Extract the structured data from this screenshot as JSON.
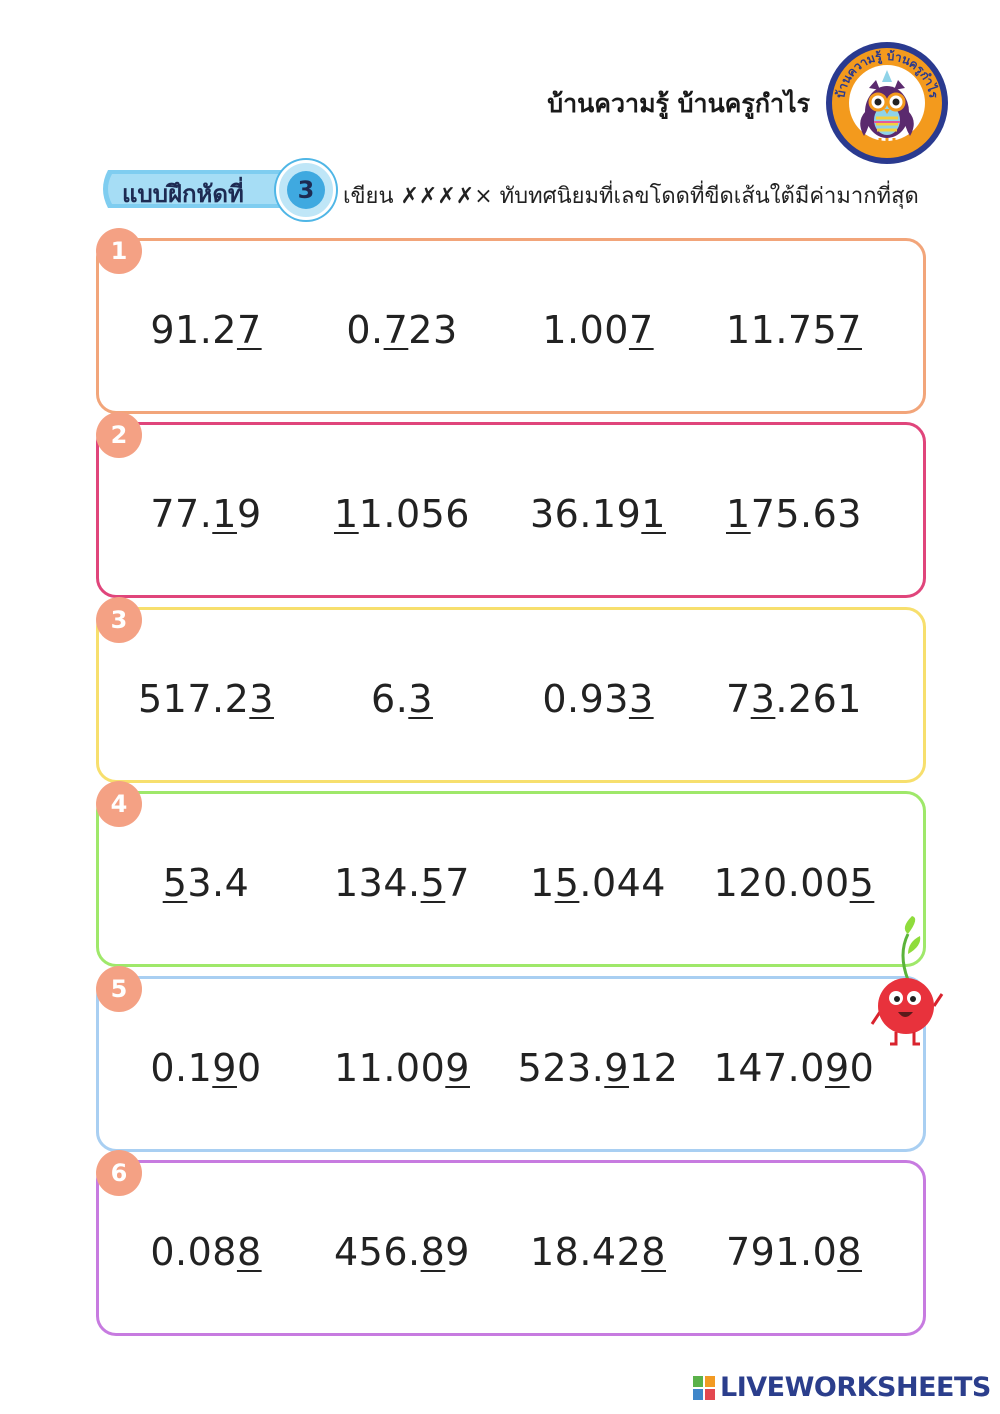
{
  "header": {
    "brand_title": "บ้านความรู้ บ้านครูกำไร",
    "logo_text": "บ้านความรู้ บ้านครูกำไร",
    "exercise_label": "แบบฝึกหัดที่",
    "exercise_number": "3",
    "instruction_prefix": "เขียน",
    "instruction_mark": "✗✗✗✗",
    "instruction_mark_end": "×",
    "instruction_suffix": "ทับทศนิยมที่เลขโดดที่ขีดเส้นใต้มีค่ามากที่สุด"
  },
  "colors": {
    "circle": "#f4a184",
    "borders": [
      "#f2a57a",
      "#e0457b",
      "#f7df6d",
      "#9fe86a",
      "#a9cff2",
      "#c77be0"
    ]
  },
  "problems": [
    {
      "number": "1",
      "items": [
        {
          "pre": "91.2",
          "u": "7",
          "post": ""
        },
        {
          "pre": "0.",
          "u": "7",
          "post": "23"
        },
        {
          "pre": "1.00",
          "u": "7",
          "post": ""
        },
        {
          "pre": "11.75",
          "u": "7",
          "post": ""
        }
      ]
    },
    {
      "number": "2",
      "items": [
        {
          "pre": "77.",
          "u": "1",
          "post": "9"
        },
        {
          "pre": "",
          "u": "1",
          "post": "1.056"
        },
        {
          "pre": "36.19",
          "u": "1",
          "post": ""
        },
        {
          "pre": "",
          "u": "1",
          "post": "75.63"
        }
      ]
    },
    {
      "number": "3",
      "items": [
        {
          "pre": "517.2",
          "u": "3",
          "post": ""
        },
        {
          "pre": "6.",
          "u": "3",
          "post": ""
        },
        {
          "pre": "0.93",
          "u": "3",
          "post": ""
        },
        {
          "pre": "7",
          "u": "3",
          "post": ".261"
        }
      ]
    },
    {
      "number": "4",
      "items": [
        {
          "pre": "",
          "u": "5",
          "post": "3.4"
        },
        {
          "pre": "134.",
          "u": "5",
          "post": "7"
        },
        {
          "pre": "1",
          "u": "5",
          "post": ".044"
        },
        {
          "pre": "120.00",
          "u": "5",
          "post": ""
        }
      ]
    },
    {
      "number": "5",
      "items": [
        {
          "pre": "0.1",
          "u": "9",
          "post": "0"
        },
        {
          "pre": "11.00",
          "u": "9",
          "post": ""
        },
        {
          "pre": "523.",
          "u": "9",
          "post": "12"
        },
        {
          "pre": "147.0",
          "u": "9",
          "post": "0"
        }
      ]
    },
    {
      "number": "6",
      "items": [
        {
          "pre": "0.08",
          "u": "8",
          "post": ""
        },
        {
          "pre": "456.",
          "u": "8",
          "post": "9"
        },
        {
          "pre": "18.42",
          "u": "8",
          "post": ""
        },
        {
          "pre": "791.0",
          "u": "8",
          "post": ""
        }
      ]
    }
  ],
  "footer": {
    "brand": "LIVEWORKSHEETS"
  }
}
